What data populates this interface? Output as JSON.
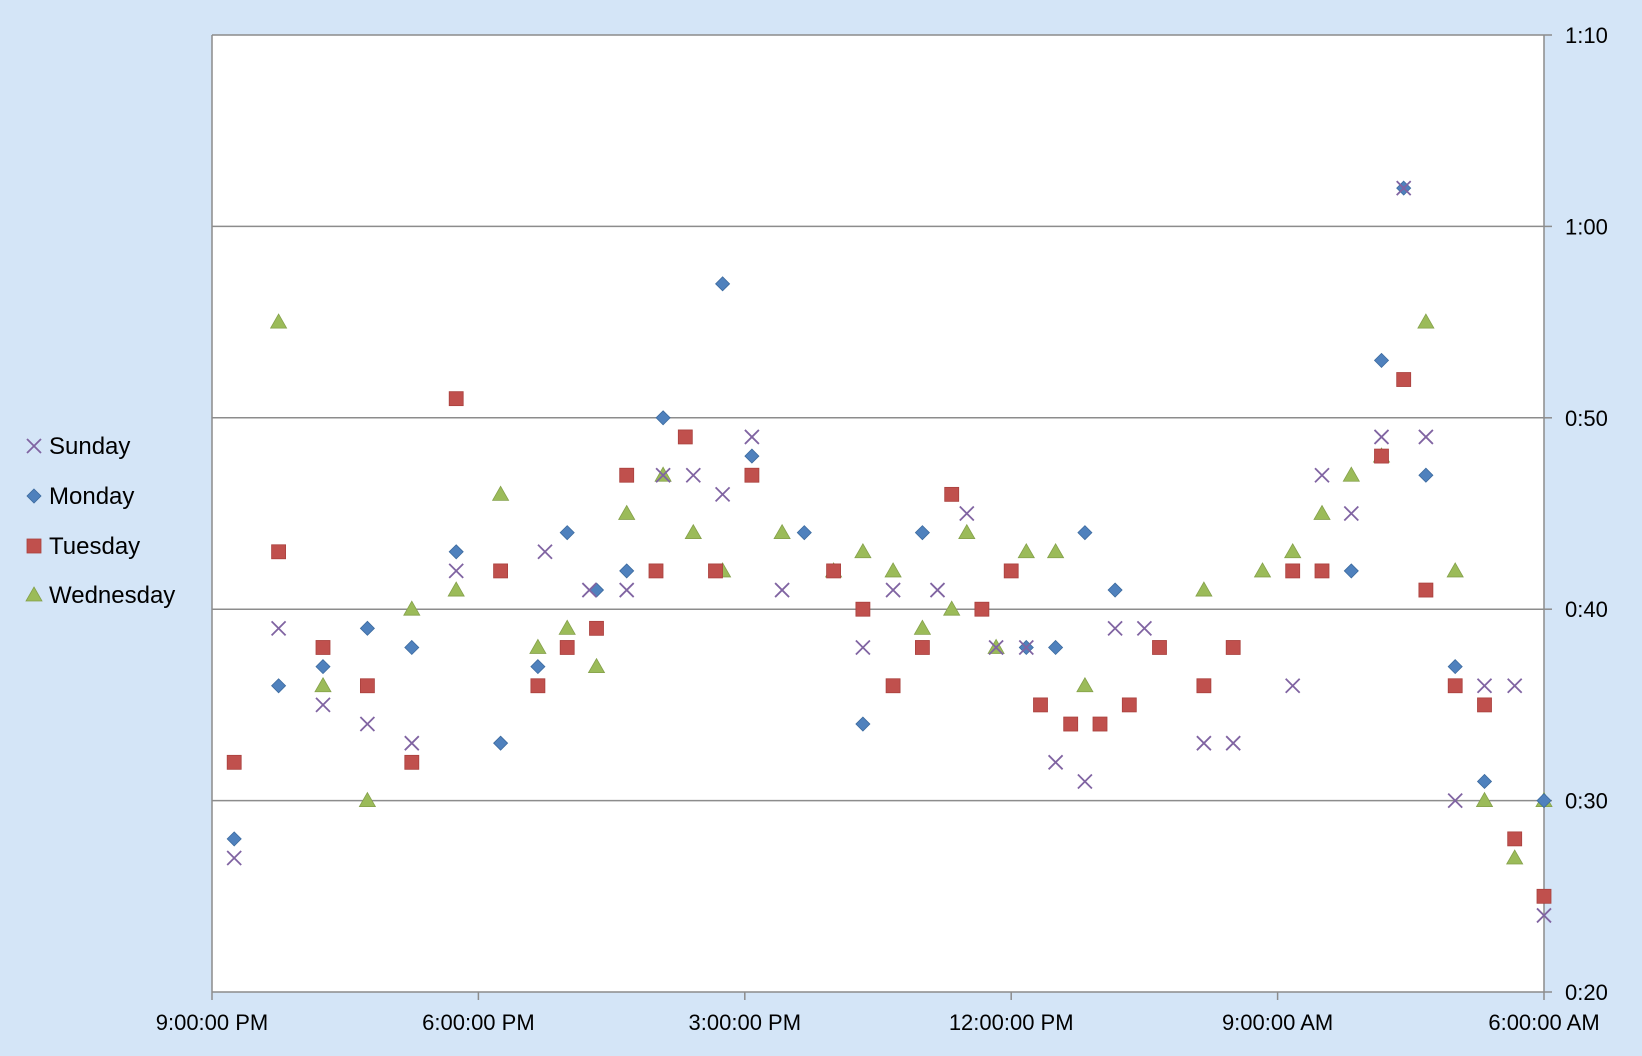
{
  "chart_data": {
    "type": "scatter",
    "x_reversed": true,
    "x_unit": "hours (0 = 6:00:00 AM, increasing toward 9:00:00 PM; axis is reversed)",
    "x_ticks": [
      {
        "value": 15,
        "label": "9:00:00 PM"
      },
      {
        "value": 12,
        "label": "6:00:00 PM"
      },
      {
        "value": 9,
        "label": "3:00:00 PM"
      },
      {
        "value": 6,
        "label": "12:00:00 PM"
      },
      {
        "value": 3,
        "label": "9:00:00 AM"
      },
      {
        "value": 0,
        "label": "6:00:00 AM"
      }
    ],
    "xlim": [
      0,
      15
    ],
    "y_unit": "minutes",
    "y_ticks": [
      {
        "value": 20,
        "label": "0:20"
      },
      {
        "value": 30,
        "label": "0:30"
      },
      {
        "value": 40,
        "label": "0:40"
      },
      {
        "value": 50,
        "label": "0:50"
      },
      {
        "value": 60,
        "label": "1:00"
      },
      {
        "value": 70,
        "label": "1:10"
      }
    ],
    "ylim": [
      20,
      70
    ],
    "y_axis_position": "right",
    "grid": "horizontal",
    "legend_position": "left",
    "series": [
      {
        "name": "Sunday",
        "marker": "x",
        "color": "#8064a2",
        "points": [
          [
            14.75,
            27
          ],
          [
            14.25,
            39
          ],
          [
            13.75,
            35
          ],
          [
            13.25,
            34
          ],
          [
            12.75,
            33
          ],
          [
            12.25,
            42
          ],
          [
            11.25,
            43
          ],
          [
            10.75,
            41
          ],
          [
            10.33,
            41
          ],
          [
            9.92,
            47
          ],
          [
            9.58,
            47
          ],
          [
            9.25,
            46
          ],
          [
            8.92,
            49
          ],
          [
            8.58,
            41
          ],
          [
            7.67,
            38
          ],
          [
            7.33,
            41
          ],
          [
            6.83,
            41
          ],
          [
            6.5,
            45
          ],
          [
            6.17,
            38
          ],
          [
            5.83,
            38
          ],
          [
            5.5,
            32
          ],
          [
            5.17,
            31
          ],
          [
            4.83,
            39
          ],
          [
            4.5,
            39
          ],
          [
            3.83,
            33
          ],
          [
            3.5,
            33
          ],
          [
            2.83,
            36
          ],
          [
            2.5,
            47
          ],
          [
            2.17,
            45
          ],
          [
            1.83,
            49
          ],
          [
            1.58,
            62
          ],
          [
            1.33,
            49
          ],
          [
            1.0,
            30
          ],
          [
            0.67,
            36
          ],
          [
            0.33,
            36
          ],
          [
            0,
            24
          ]
        ]
      },
      {
        "name": "Monday",
        "marker": "diamond",
        "color": "#4f81bd",
        "points": [
          [
            14.75,
            28
          ],
          [
            14.25,
            36
          ],
          [
            13.75,
            37
          ],
          [
            13.25,
            39
          ],
          [
            12.75,
            38
          ],
          [
            12.25,
            43
          ],
          [
            11.75,
            33
          ],
          [
            11.33,
            37
          ],
          [
            11.0,
            44
          ],
          [
            10.67,
            41
          ],
          [
            10.33,
            42
          ],
          [
            9.92,
            50
          ],
          [
            9.25,
            57
          ],
          [
            8.92,
            48
          ],
          [
            8.33,
            44
          ],
          [
            7.67,
            34
          ],
          [
            7.0,
            44
          ],
          [
            5.83,
            38
          ],
          [
            5.5,
            38
          ],
          [
            5.17,
            44
          ],
          [
            4.83,
            41
          ],
          [
            2.17,
            42
          ],
          [
            1.83,
            53
          ],
          [
            1.58,
            62
          ],
          [
            1.33,
            47
          ],
          [
            1.0,
            37
          ],
          [
            0.67,
            31
          ],
          [
            0,
            30
          ]
        ]
      },
      {
        "name": "Tuesday",
        "marker": "square",
        "color": "#c0504d",
        "points": [
          [
            14.75,
            32
          ],
          [
            14.25,
            43
          ],
          [
            13.75,
            38
          ],
          [
            13.25,
            36
          ],
          [
            12.75,
            32
          ],
          [
            12.25,
            51
          ],
          [
            11.75,
            42
          ],
          [
            11.33,
            36
          ],
          [
            11.0,
            38
          ],
          [
            10.67,
            39
          ],
          [
            10.33,
            47
          ],
          [
            10.0,
            42
          ],
          [
            9.67,
            49
          ],
          [
            9.33,
            42
          ],
          [
            8.92,
            47
          ],
          [
            8.0,
            42
          ],
          [
            7.67,
            40
          ],
          [
            7.33,
            36
          ],
          [
            7.0,
            38
          ],
          [
            6.67,
            46
          ],
          [
            6.33,
            40
          ],
          [
            6.0,
            42
          ],
          [
            5.67,
            35
          ],
          [
            5.33,
            34
          ],
          [
            5.0,
            34
          ],
          [
            4.67,
            35
          ],
          [
            4.33,
            38
          ],
          [
            3.83,
            36
          ],
          [
            3.5,
            38
          ],
          [
            2.83,
            42
          ],
          [
            2.5,
            42
          ],
          [
            1.83,
            48
          ],
          [
            1.58,
            52
          ],
          [
            1.33,
            41
          ],
          [
            1.0,
            36
          ],
          [
            0.67,
            35
          ],
          [
            0.33,
            28
          ],
          [
            0,
            25
          ]
        ]
      },
      {
        "name": "Wednesday",
        "marker": "triangle",
        "color": "#9bbb59",
        "points": [
          [
            14.25,
            55
          ],
          [
            13.75,
            36
          ],
          [
            13.25,
            30
          ],
          [
            12.75,
            40
          ],
          [
            12.25,
            41
          ],
          [
            11.75,
            46
          ],
          [
            11.33,
            38
          ],
          [
            11.0,
            39
          ],
          [
            10.67,
            37
          ],
          [
            10.33,
            45
          ],
          [
            9.92,
            47
          ],
          [
            9.58,
            44
          ],
          [
            9.25,
            42
          ],
          [
            8.58,
            44
          ],
          [
            8.0,
            42
          ],
          [
            7.67,
            43
          ],
          [
            7.33,
            42
          ],
          [
            7.0,
            39
          ],
          [
            6.67,
            40
          ],
          [
            6.5,
            44
          ],
          [
            6.17,
            38
          ],
          [
            5.83,
            43
          ],
          [
            5.5,
            43
          ],
          [
            5.17,
            36
          ],
          [
            3.83,
            41
          ],
          [
            3.17,
            42
          ],
          [
            2.83,
            43
          ],
          [
            2.5,
            45
          ],
          [
            2.17,
            47
          ],
          [
            1.83,
            48
          ],
          [
            1.33,
            55
          ],
          [
            1.0,
            42
          ],
          [
            0.67,
            30
          ],
          [
            0.33,
            27
          ],
          [
            0,
            30
          ]
        ]
      }
    ]
  }
}
